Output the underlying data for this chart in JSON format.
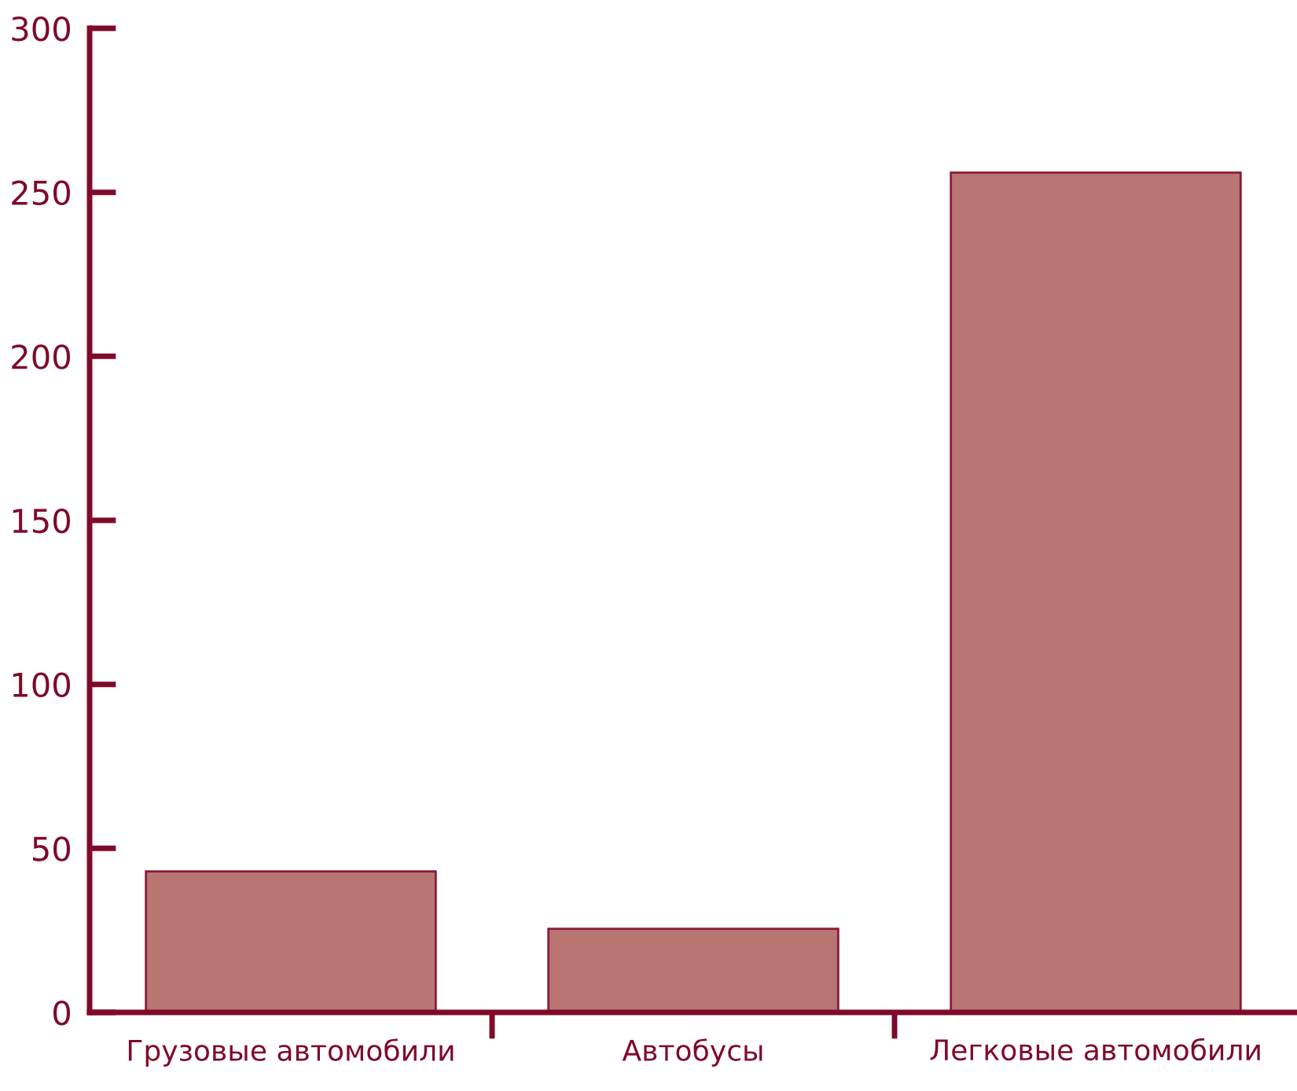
{
  "chart_data": {
    "type": "bar",
    "categories": [
      "Грузовые автомобили",
      "Автобусы",
      "Легковые автомобили"
    ],
    "values": [
      43,
      25.5,
      256
    ],
    "color": "#b87572",
    "ylim": [
      0,
      300
    ],
    "yticks": [
      0,
      50,
      100,
      150,
      200,
      250,
      300
    ],
    "grid": false
  }
}
